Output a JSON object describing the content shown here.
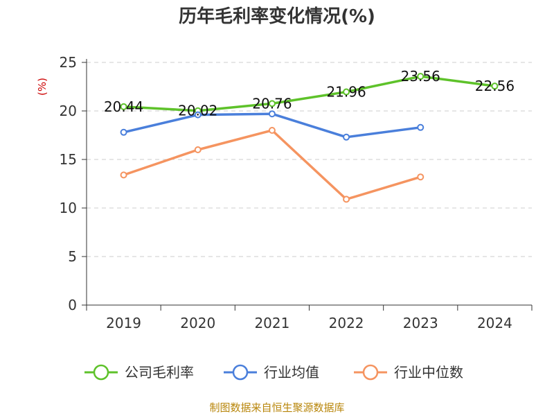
{
  "chart_data": {
    "type": "line",
    "title": "历年毛利率变化情况(%)",
    "ylabel": "(%)",
    "xlabel": "",
    "ylim": [
      0,
      25
    ],
    "yticks": [
      0,
      5,
      10,
      15,
      20,
      25
    ],
    "categories": [
      "2019",
      "2020",
      "2021",
      "2022",
      "2023",
      "2024"
    ],
    "grid": true,
    "legend_position": "bottom",
    "series": [
      {
        "name": "公司毛利率",
        "color": "#5ec22a",
        "values": [
          20.44,
          20.02,
          20.76,
          21.96,
          23.56,
          22.56
        ],
        "labels": [
          "20.44",
          "20.02",
          "20.76",
          "21.96",
          "23.56",
          "22.56"
        ]
      },
      {
        "name": "行业均值",
        "color": "#4a7fdb",
        "values": [
          17.8,
          19.6,
          19.7,
          17.3,
          18.3,
          null
        ]
      },
      {
        "name": "行业中位数",
        "color": "#f59460",
        "values": [
          13.4,
          16.0,
          18.0,
          10.9,
          13.2,
          null
        ]
      }
    ]
  },
  "source_text": "制图数据来自恒生聚源数据库"
}
